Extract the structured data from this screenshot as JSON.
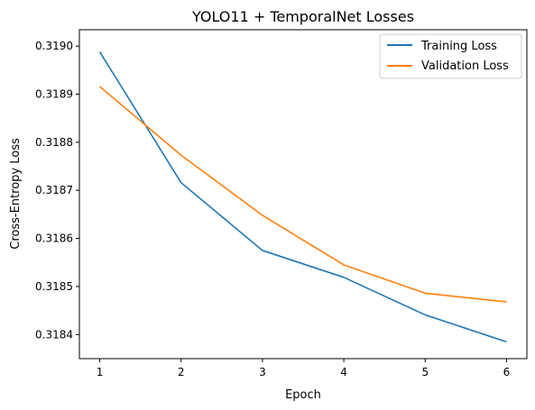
{
  "chart_data": {
    "type": "line",
    "title": "YOLO11 + TemporalNet Losses",
    "xlabel": "Epoch",
    "ylabel": "Cross-Entropy Loss",
    "x": [
      1,
      2,
      3,
      4,
      5,
      6
    ],
    "xlim": [
      0.75,
      6.25
    ],
    "ylim": [
      0.31835,
      0.319034
    ],
    "x_ticks": [
      1,
      2,
      3,
      4,
      5,
      6
    ],
    "y_ticks": [
      0.3184,
      0.3185,
      0.3186,
      0.3187,
      0.3188,
      0.3189,
      0.319
    ],
    "y_tick_labels": [
      "0.3184",
      "0.3185",
      "0.3186",
      "0.3187",
      "0.3188",
      "0.3189",
      "0.3190"
    ],
    "grid": false,
    "legend_position": "top-right",
    "series": [
      {
        "name": "Training Loss",
        "color": "#1f77b4",
        "values": [
          0.318988,
          0.318716,
          0.318575,
          0.318519,
          0.318441,
          0.318385
        ]
      },
      {
        "name": "Validation Loss",
        "color": "#ff7f0e",
        "values": [
          0.318916,
          0.318773,
          0.318648,
          0.318545,
          0.318486,
          0.318468
        ]
      }
    ]
  }
}
